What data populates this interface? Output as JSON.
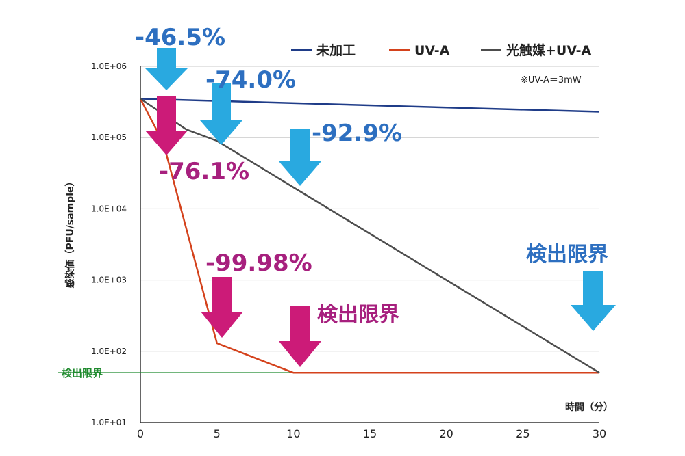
{
  "chart_data": {
    "type": "line",
    "title": "",
    "xlabel": "時間（分）",
    "ylabel": "感染価（PFU/sample）",
    "y_scale": "log",
    "xlim": [
      0,
      30
    ],
    "ylim": [
      10,
      1000000
    ],
    "x_ticks": [
      "0",
      "5",
      "10",
      "15",
      "20",
      "25",
      "30"
    ],
    "x_tick_values": [
      0,
      5,
      10,
      15,
      20,
      25,
      30
    ],
    "y_ticks": [
      "1.0E+01",
      "1.0E+02",
      "1.0E+03",
      "1.0E+04",
      "1.0E+05",
      "1.0E+06"
    ],
    "y_tick_values": [
      10,
      100,
      1000,
      10000,
      100000,
      1000000
    ],
    "grid": "horizontal",
    "legend_position": "top-right",
    "series": [
      {
        "name": "未加工",
        "color": "#1f3c88",
        "points": [
          [
            0,
            350000
          ],
          [
            30,
            230000
          ]
        ]
      },
      {
        "name": "UV-A",
        "color": "#d4421c",
        "points": [
          [
            0,
            350000
          ],
          [
            1.5,
            84000
          ],
          [
            5,
            130
          ],
          [
            10,
            50
          ],
          [
            30,
            50
          ]
        ]
      },
      {
        "name": "光触媒+UV-A",
        "color": "#4d4d4d",
        "points": [
          [
            0,
            350000
          ],
          [
            3,
            130000
          ],
          [
            5,
            90000
          ],
          [
            10,
            20000
          ],
          [
            30,
            50
          ]
        ]
      }
    ],
    "detection_limit": {
      "label": "検出限界",
      "value": 50,
      "color": "#1f8a2e"
    },
    "note": "※UV-A＝3mW",
    "annotations": [
      {
        "text": "-46.5%",
        "color": "blue"
      },
      {
        "text": "-74.0%",
        "color": "blue"
      },
      {
        "text": "-92.9%",
        "color": "blue"
      },
      {
        "text": "検出限界",
        "color": "blue"
      },
      {
        "text": "-76.1%",
        "color": "pink"
      },
      {
        "text": "-99.98%",
        "color": "pink"
      },
      {
        "text": "検出限界",
        "color": "pink"
      }
    ]
  },
  "colors": {
    "arrow_blue": "#29a9e0",
    "arrow_pink": "#cc1b78",
    "text_blue": "#2d6fc0",
    "text_pink": "#a7207e"
  }
}
